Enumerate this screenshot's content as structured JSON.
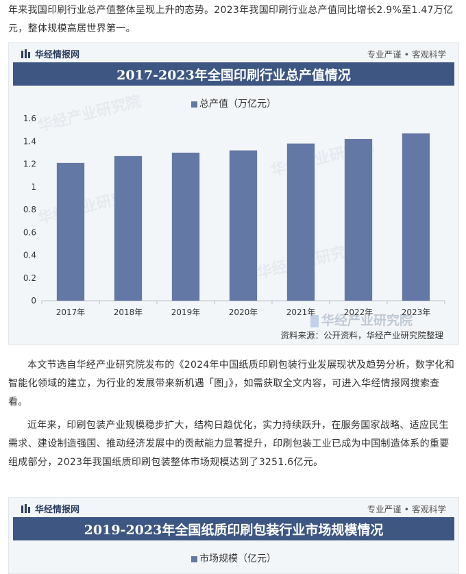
{
  "intro_text": "年来我国印刷行业总产值整体呈现上升的态势。2023年我国印刷行业总产值同比增长2.9%至1.47万亿元，整体规模高居世界第一。",
  "chart1": {
    "brand": "华经情报网",
    "slogan": "专业严谨 • 客观科学",
    "title": "2017-2023年全国印刷行业总产值情况",
    "watermark": "华经产业研究院",
    "logo_watermark": "华经产业研究院",
    "source": "资料来源：公开资料，华经产业研究院整理",
    "colors": {
      "bar": "#6478a5",
      "title_bg": "#3d5682"
    }
  },
  "paragraph1": "本文节选自华经产业研究院发布的《2024年中国纸质印刷包装行业发展现状及趋势分析，数字化和智能化领域的建立，为行业的发展带来新机遇「图」》，如需获取全文内容，可进入华经情报网搜索查看。",
  "paragraph2": "近年来，印刷包装产业规模稳步扩大，结构日趋优化，实力持续跃升，在服务国家战略、适应民生需求、建设制造强国、推动经济发展中的贡献能力显著提升，印刷包装工业已成为中国制造体系的重要组成部分，2023年我国纸质印刷包装整体市场规模达到了3251.6亿元。",
  "chart2": {
    "brand": "华经情报网",
    "slogan": "专业严谨 • 客观科学",
    "title": "2019-2023年全国纸质印刷包装行业市场规模情况"
  },
  "chart_data": [
    {
      "type": "bar",
      "title": "2017-2023年全国印刷行业总产值情况",
      "categories": [
        "2017年",
        "2018年",
        "2019年",
        "2020年",
        "2021年",
        "2022年",
        "2023年"
      ],
      "series": [
        {
          "name": "总产值（万亿元）",
          "values": [
            1.21,
            1.27,
            1.3,
            1.32,
            1.38,
            1.42,
            1.47
          ]
        }
      ],
      "yticks": [
        "0",
        "0.2",
        "0.4",
        "0.6",
        "0.8",
        "1",
        "1.2",
        "1.4",
        "1.6"
      ],
      "ylim": [
        0,
        1.6
      ],
      "legend": "top-center",
      "grid": false
    },
    {
      "type": "bar",
      "title": "2019-2023年全国纸质印刷包装行业市场规模情况",
      "series": [
        {
          "name": "市场规模（亿元）"
        }
      ],
      "legend": "top-center"
    }
  ]
}
